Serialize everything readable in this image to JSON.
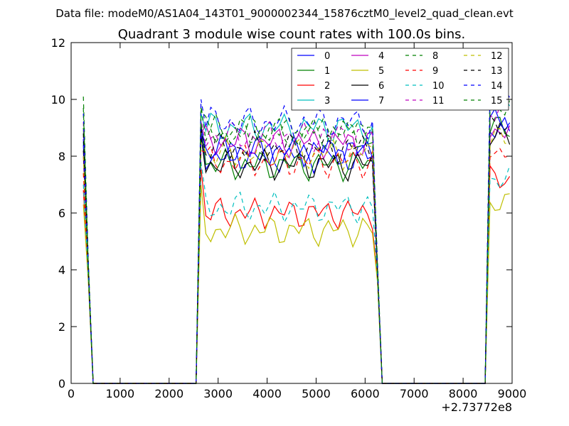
{
  "suptitle": "Data file: modeM0/AS1A04_143T01_9000002344_15876cztM0_level2_quad_clean.evt",
  "chart_data": {
    "type": "line",
    "title": "Quadrant 3 module wise count rates with 100.0s bins.",
    "xlabel": "",
    "ylabel": "",
    "x_offset_label": "+2.73772e8",
    "xlim": [
      0,
      9000
    ],
    "ylim": [
      0,
      12
    ],
    "xticks": [
      0,
      1000,
      2000,
      3000,
      4000,
      5000,
      6000,
      7000,
      8000,
      9000
    ],
    "yticks": [
      0,
      2,
      4,
      6,
      8,
      10,
      12
    ],
    "grid": false,
    "legend_position": "top-right",
    "x": [
      250,
      350,
      450,
      550,
      650,
      750,
      850,
      950,
      1050,
      1150,
      1250,
      1350,
      1450,
      1550,
      1650,
      1750,
      1850,
      1950,
      2050,
      2150,
      2250,
      2350,
      2450,
      2550,
      2650,
      2750,
      2850,
      2950,
      3050,
      3150,
      3250,
      3350,
      3450,
      3550,
      3650,
      3750,
      3850,
      3950,
      4050,
      4150,
      4250,
      4350,
      4450,
      4550,
      4650,
      4750,
      4850,
      4950,
      5050,
      5150,
      5250,
      5350,
      5450,
      5550,
      5650,
      5750,
      5850,
      5950,
      6050,
      6150,
      6250,
      6350,
      6450,
      6550,
      6650,
      6750,
      6850,
      6950,
      7050,
      7150,
      7250,
      7350,
      7450,
      7550,
      7650,
      7750,
      7850,
      7950,
      8050,
      8150,
      8250,
      8350,
      8450,
      8550,
      8650,
      8750,
      8850,
      8950
    ],
    "series": [
      {
        "name": "0",
        "color": "#0000ff",
        "dash": "solid",
        "levels": [
          8.4,
          4.0,
          0.0,
          8.9,
          8.0,
          4.0,
          8.9
        ]
      },
      {
        "name": "1",
        "color": "#008000",
        "dash": "solid",
        "levels": [
          9.0,
          4.0,
          0.0,
          9.2,
          7.7,
          4.0,
          9.0
        ]
      },
      {
        "name": "2",
        "color": "#ff0000",
        "dash": "solid",
        "levels": [
          6.8,
          3.8,
          0.0,
          7.6,
          6.0,
          3.8,
          7.2
        ]
      },
      {
        "name": "3",
        "color": "#00bfbf",
        "dash": "solid",
        "levels": [
          8.5,
          4.0,
          0.0,
          9.5,
          9.0,
          4.0,
          10.0
        ]
      },
      {
        "name": "4",
        "color": "#bf00bf",
        "dash": "solid",
        "levels": [
          8.0,
          4.0,
          0.0,
          8.8,
          8.5,
          4.0,
          8.9
        ]
      },
      {
        "name": "5",
        "color": "#bfbf00",
        "dash": "solid",
        "levels": [
          6.3,
          3.6,
          0.0,
          7.0,
          5.4,
          3.6,
          6.3
        ]
      },
      {
        "name": "6",
        "color": "#000000",
        "dash": "solid",
        "levels": [
          8.2,
          4.0,
          0.0,
          8.7,
          7.7,
          4.0,
          8.7
        ]
      },
      {
        "name": "7",
        "color": "#0000ff",
        "dash": "solid",
        "levels": [
          8.6,
          4.0,
          0.0,
          9.0,
          8.2,
          4.0,
          9.2
        ]
      },
      {
        "name": "8",
        "color": "#008000",
        "dash": "dash",
        "levels": [
          10.1,
          4.4,
          0.0,
          9.8,
          8.9,
          4.4,
          10.0
        ]
      },
      {
        "name": "9",
        "color": "#ff0000",
        "dash": "dash",
        "levels": [
          7.4,
          4.0,
          0.0,
          8.2,
          7.8,
          4.0,
          8.2
        ]
      },
      {
        "name": "10",
        "color": "#00bfbf",
        "dash": "dash",
        "levels": [
          7.0,
          3.8,
          0.0,
          7.8,
          6.2,
          3.8,
          7.2
        ]
      },
      {
        "name": "11",
        "color": "#bf00bf",
        "dash": "dash",
        "levels": [
          9.2,
          4.2,
          0.0,
          9.3,
          8.7,
          4.2,
          9.6
        ]
      },
      {
        "name": "12",
        "color": "#bfbf00",
        "dash": "dash",
        "levels": [
          8.0,
          4.0,
          0.0,
          8.5,
          8.1,
          4.0,
          8.6
        ]
      },
      {
        "name": "13",
        "color": "#000000",
        "dash": "dash",
        "levels": [
          8.8,
          4.0,
          0.0,
          9.0,
          8.3,
          4.0,
          9.0
        ]
      },
      {
        "name": "14",
        "color": "#0000ff",
        "dash": "dash",
        "levels": [
          9.5,
          4.2,
          0.0,
          10.0,
          9.2,
          4.2,
          10.4
        ]
      },
      {
        "name": "15",
        "color": "#008000",
        "dash": "dash",
        "levels": [
          9.7,
          4.2,
          0.0,
          9.6,
          8.8,
          4.2,
          9.8
        ]
      }
    ]
  }
}
